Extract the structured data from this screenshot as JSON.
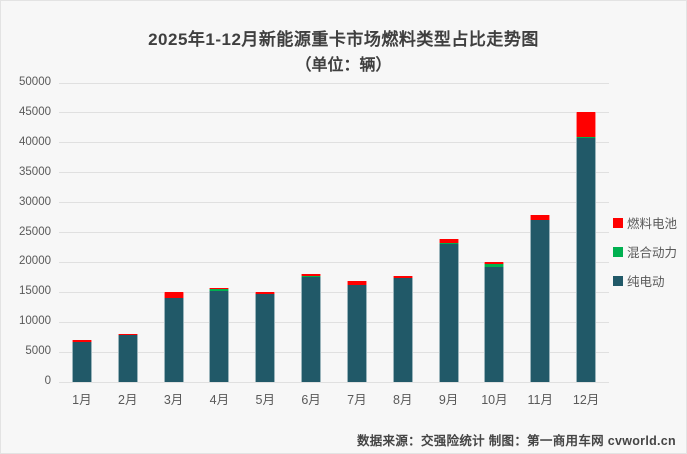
{
  "title": "2025年1-12月新能源重卡市场燃料类型占比走势图",
  "subtitle": "（单位：辆）",
  "footer": {
    "text": "数据来源：交强险统计  制图：第一商用车网 cvworld.cn"
  },
  "colors": {
    "background": "#f7f7f7",
    "gridline": "#e0e0e0",
    "title_text": "#3f3f3f",
    "axis_text": "#595959",
    "fuel_cell_red": "#ff0000",
    "hybrid_green": "#00b050",
    "bev_teal": "#215968"
  },
  "legend": [
    {
      "label": "燃料电池",
      "color": "#ff0000"
    },
    {
      "label": "混合动力",
      "color": "#00b050"
    },
    {
      "label": "纯电动",
      "color": "#215968"
    }
  ],
  "chart_data": {
    "type": "bar",
    "stacked": true,
    "title": "2025年1-12月新能源重卡市场燃料类型占比走势图",
    "subtitle": "（单位：辆）",
    "categories": [
      "1月",
      "2月",
      "3月",
      "4月",
      "5月",
      "6月",
      "7月",
      "8月",
      "9月",
      "10月",
      "11月",
      "12月"
    ],
    "series": [
      {
        "name": "纯电动",
        "color": "#215968",
        "values": [
          6700,
          7850,
          14100,
          15250,
          14800,
          17500,
          16300,
          17450,
          23100,
          19300,
          27100,
          40800
        ]
      },
      {
        "name": "混合动力",
        "color": "#00b050",
        "values": [
          0,
          0,
          0,
          250,
          0,
          200,
          0,
          0,
          100,
          400,
          0,
          200
        ]
      },
      {
        "name": "燃料电池",
        "color": "#ff0000",
        "values": [
          300,
          250,
          1000,
          250,
          300,
          300,
          600,
          250,
          800,
          400,
          900,
          4200
        ]
      }
    ],
    "totals": [
      7000,
      8100,
      15100,
      15750,
      15100,
      18000,
      16900,
      17700,
      24000,
      20100,
      28000,
      45200
    ],
    "xlabel": "",
    "ylabel": "",
    "ylim": [
      0,
      50000
    ],
    "ytick_step": 5000,
    "yticks": [
      0,
      5000,
      10000,
      15000,
      20000,
      25000,
      30000,
      35000,
      40000,
      45000,
      50000
    ],
    "grid": true,
    "legend_position": "right"
  }
}
